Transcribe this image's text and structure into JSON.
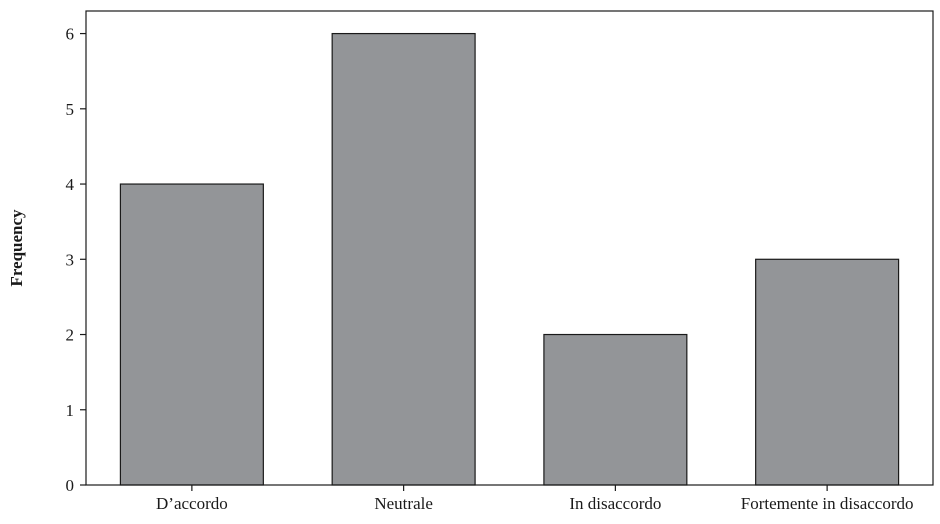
{
  "chart_data": {
    "type": "bar",
    "categories": [
      "D’accordo",
      "Neutrale",
      "In disaccordo",
      "Fortemente in disaccordo"
    ],
    "values": [
      4,
      6,
      2,
      3
    ],
    "title": "",
    "xlabel": "",
    "ylabel": "Frequency",
    "ylim": [
      0,
      6.3
    ],
    "yticks": [
      0,
      1,
      2,
      3,
      4,
      5,
      6
    ],
    "grid": false,
    "legend": "none",
    "bar_color": "#939598",
    "bar_edge_color": "#1a1a1a"
  }
}
